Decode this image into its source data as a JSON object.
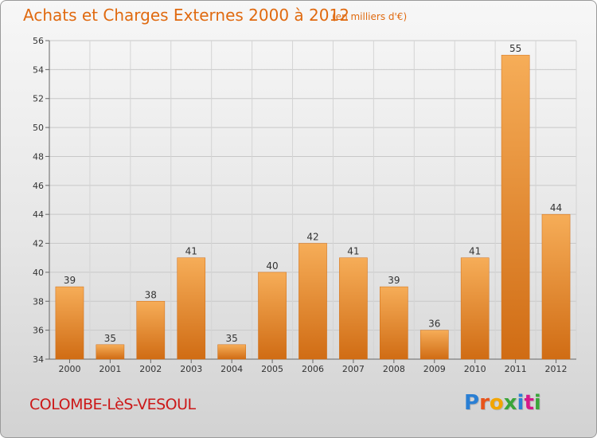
{
  "title": "Achats et Charges Externes 2000 à 2012",
  "subtitle": "(en milliers d'€)",
  "commune": "COLOMBE-LèS-VESOUL",
  "logo": {
    "text": "Proxiti",
    "colors": [
      "#2a7fd4",
      "#e8531a",
      "#f2a500",
      "#3aa53a",
      "#2a7fd4",
      "#d4188a",
      "#3aa53a"
    ]
  },
  "colors": {
    "bar": "#e88a2e",
    "bar_light": "#f6ad58",
    "bar_dark": "#d06c14",
    "title": "#e06a10",
    "commune": "#cc1818"
  },
  "chart_data": {
    "type": "bar",
    "categories": [
      "2000",
      "2001",
      "2002",
      "2003",
      "2004",
      "2005",
      "2006",
      "2007",
      "2008",
      "2009",
      "2010",
      "2011",
      "2012"
    ],
    "values": [
      39,
      35,
      38,
      41,
      35,
      40,
      42,
      41,
      39,
      36,
      41,
      55,
      44
    ],
    "ylim": [
      34,
      56
    ],
    "yticks": [
      34,
      36,
      38,
      40,
      42,
      44,
      46,
      48,
      50,
      52,
      54,
      56
    ],
    "grid": true,
    "data_labels": true
  }
}
